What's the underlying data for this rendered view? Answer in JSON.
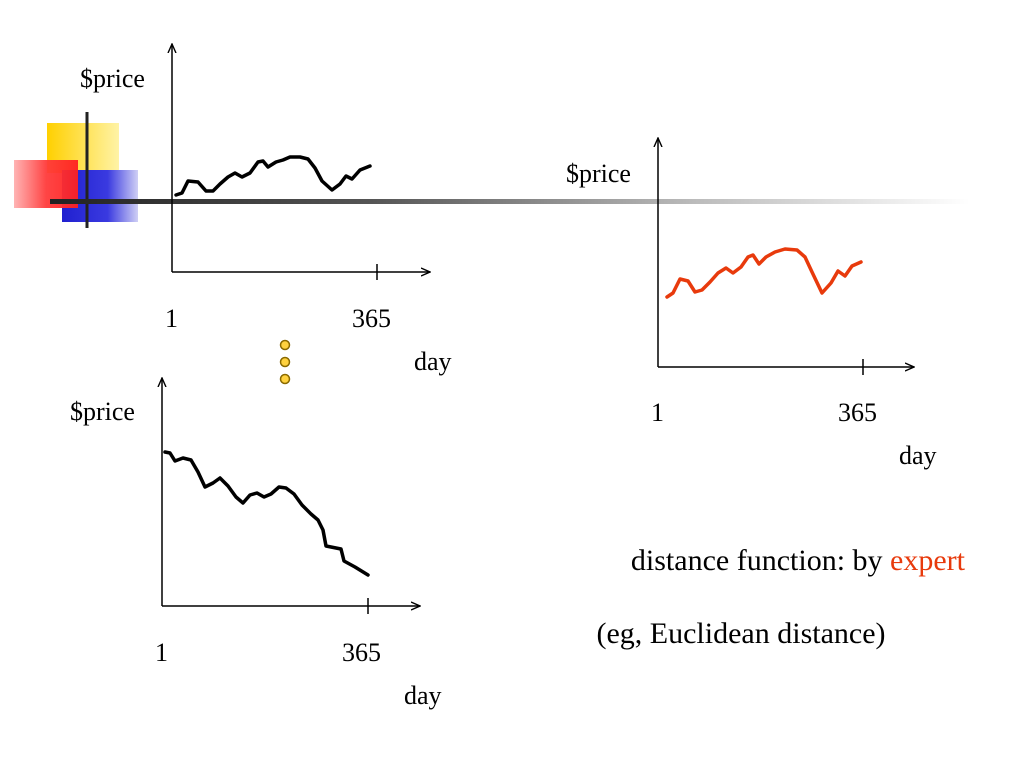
{
  "decoration": {
    "colors": {
      "yellow": "#FFD000",
      "red": "#FF3B3B",
      "blue": "#2A2AD8",
      "bar": "#222222"
    }
  },
  "charts": [
    {
      "id": "top-left",
      "ylabel": "$price",
      "xlabel": "day",
      "x_start_label": "1",
      "x_end_label": "365",
      "line_color": "#000000"
    },
    {
      "id": "right",
      "ylabel": "$price",
      "xlabel": "day",
      "x_start_label": "1",
      "x_end_label": "365",
      "line_color": "#E83A0C"
    },
    {
      "id": "bottom-left",
      "ylabel": "$price",
      "xlabel": "day",
      "x_start_label": "1",
      "x_end_label": "365",
      "line_color": "#000000"
    }
  ],
  "ellipsis": {
    "dot_count": 3,
    "fill": "#FFD23F",
    "stroke": "#8A6A00"
  },
  "caption": {
    "line1_prefix": "distance function: by ",
    "line1_highlight": "expert",
    "highlight_color": "#E83A0C",
    "line2": "(eg, Euclidean distance)"
  }
}
